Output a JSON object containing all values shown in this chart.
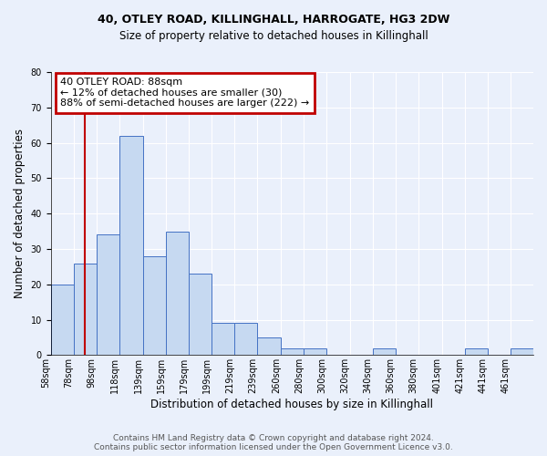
{
  "title1": "40, OTLEY ROAD, KILLINGHALL, HARROGATE, HG3 2DW",
  "title2": "Size of property relative to detached houses in Killinghall",
  "xlabel": "Distribution of detached houses by size in Killinghall",
  "ylabel": "Number of detached properties",
  "bar_color": "#c6d9f1",
  "bar_edge_color": "#4472c4",
  "annotation_line_color": "#c00000",
  "annotation_box_color": "#c00000",
  "annotation_text": "40 OTLEY ROAD: 88sqm\n← 12% of detached houses are smaller (30)\n88% of semi-detached houses are larger (222) →",
  "property_line_x": 88,
  "categories": [
    "58sqm",
    "78sqm",
    "98sqm",
    "118sqm",
    "139sqm",
    "159sqm",
    "179sqm",
    "199sqm",
    "219sqm",
    "239sqm",
    "260sqm",
    "280sqm",
    "300sqm",
    "320sqm",
    "340sqm",
    "360sqm",
    "380sqm",
    "401sqm",
    "421sqm",
    "441sqm",
    "461sqm"
  ],
  "values": [
    20,
    26,
    34,
    62,
    28,
    35,
    23,
    9,
    9,
    5,
    2,
    2,
    0,
    0,
    2,
    0,
    0,
    0,
    2,
    0,
    2
  ],
  "bin_edges": [
    58,
    78,
    98,
    118,
    139,
    159,
    179,
    199,
    219,
    239,
    260,
    280,
    300,
    320,
    340,
    360,
    380,
    401,
    421,
    441,
    461,
    481
  ],
  "ylim": [
    0,
    80
  ],
  "yticks": [
    0,
    10,
    20,
    30,
    40,
    50,
    60,
    70,
    80
  ],
  "footer": "Contains HM Land Registry data © Crown copyright and database right 2024.\nContains public sector information licensed under the Open Government Licence v3.0.",
  "background_color": "#eaf0fb",
  "plot_bg_color": "#eaf0fb",
  "grid_color": "#ffffff",
  "title_fontsize": 9,
  "subtitle_fontsize": 8.5,
  "ylabel_fontsize": 8.5,
  "xlabel_fontsize": 8.5,
  "tick_fontsize": 7,
  "annotation_fontsize": 8,
  "footer_fontsize": 6.5
}
